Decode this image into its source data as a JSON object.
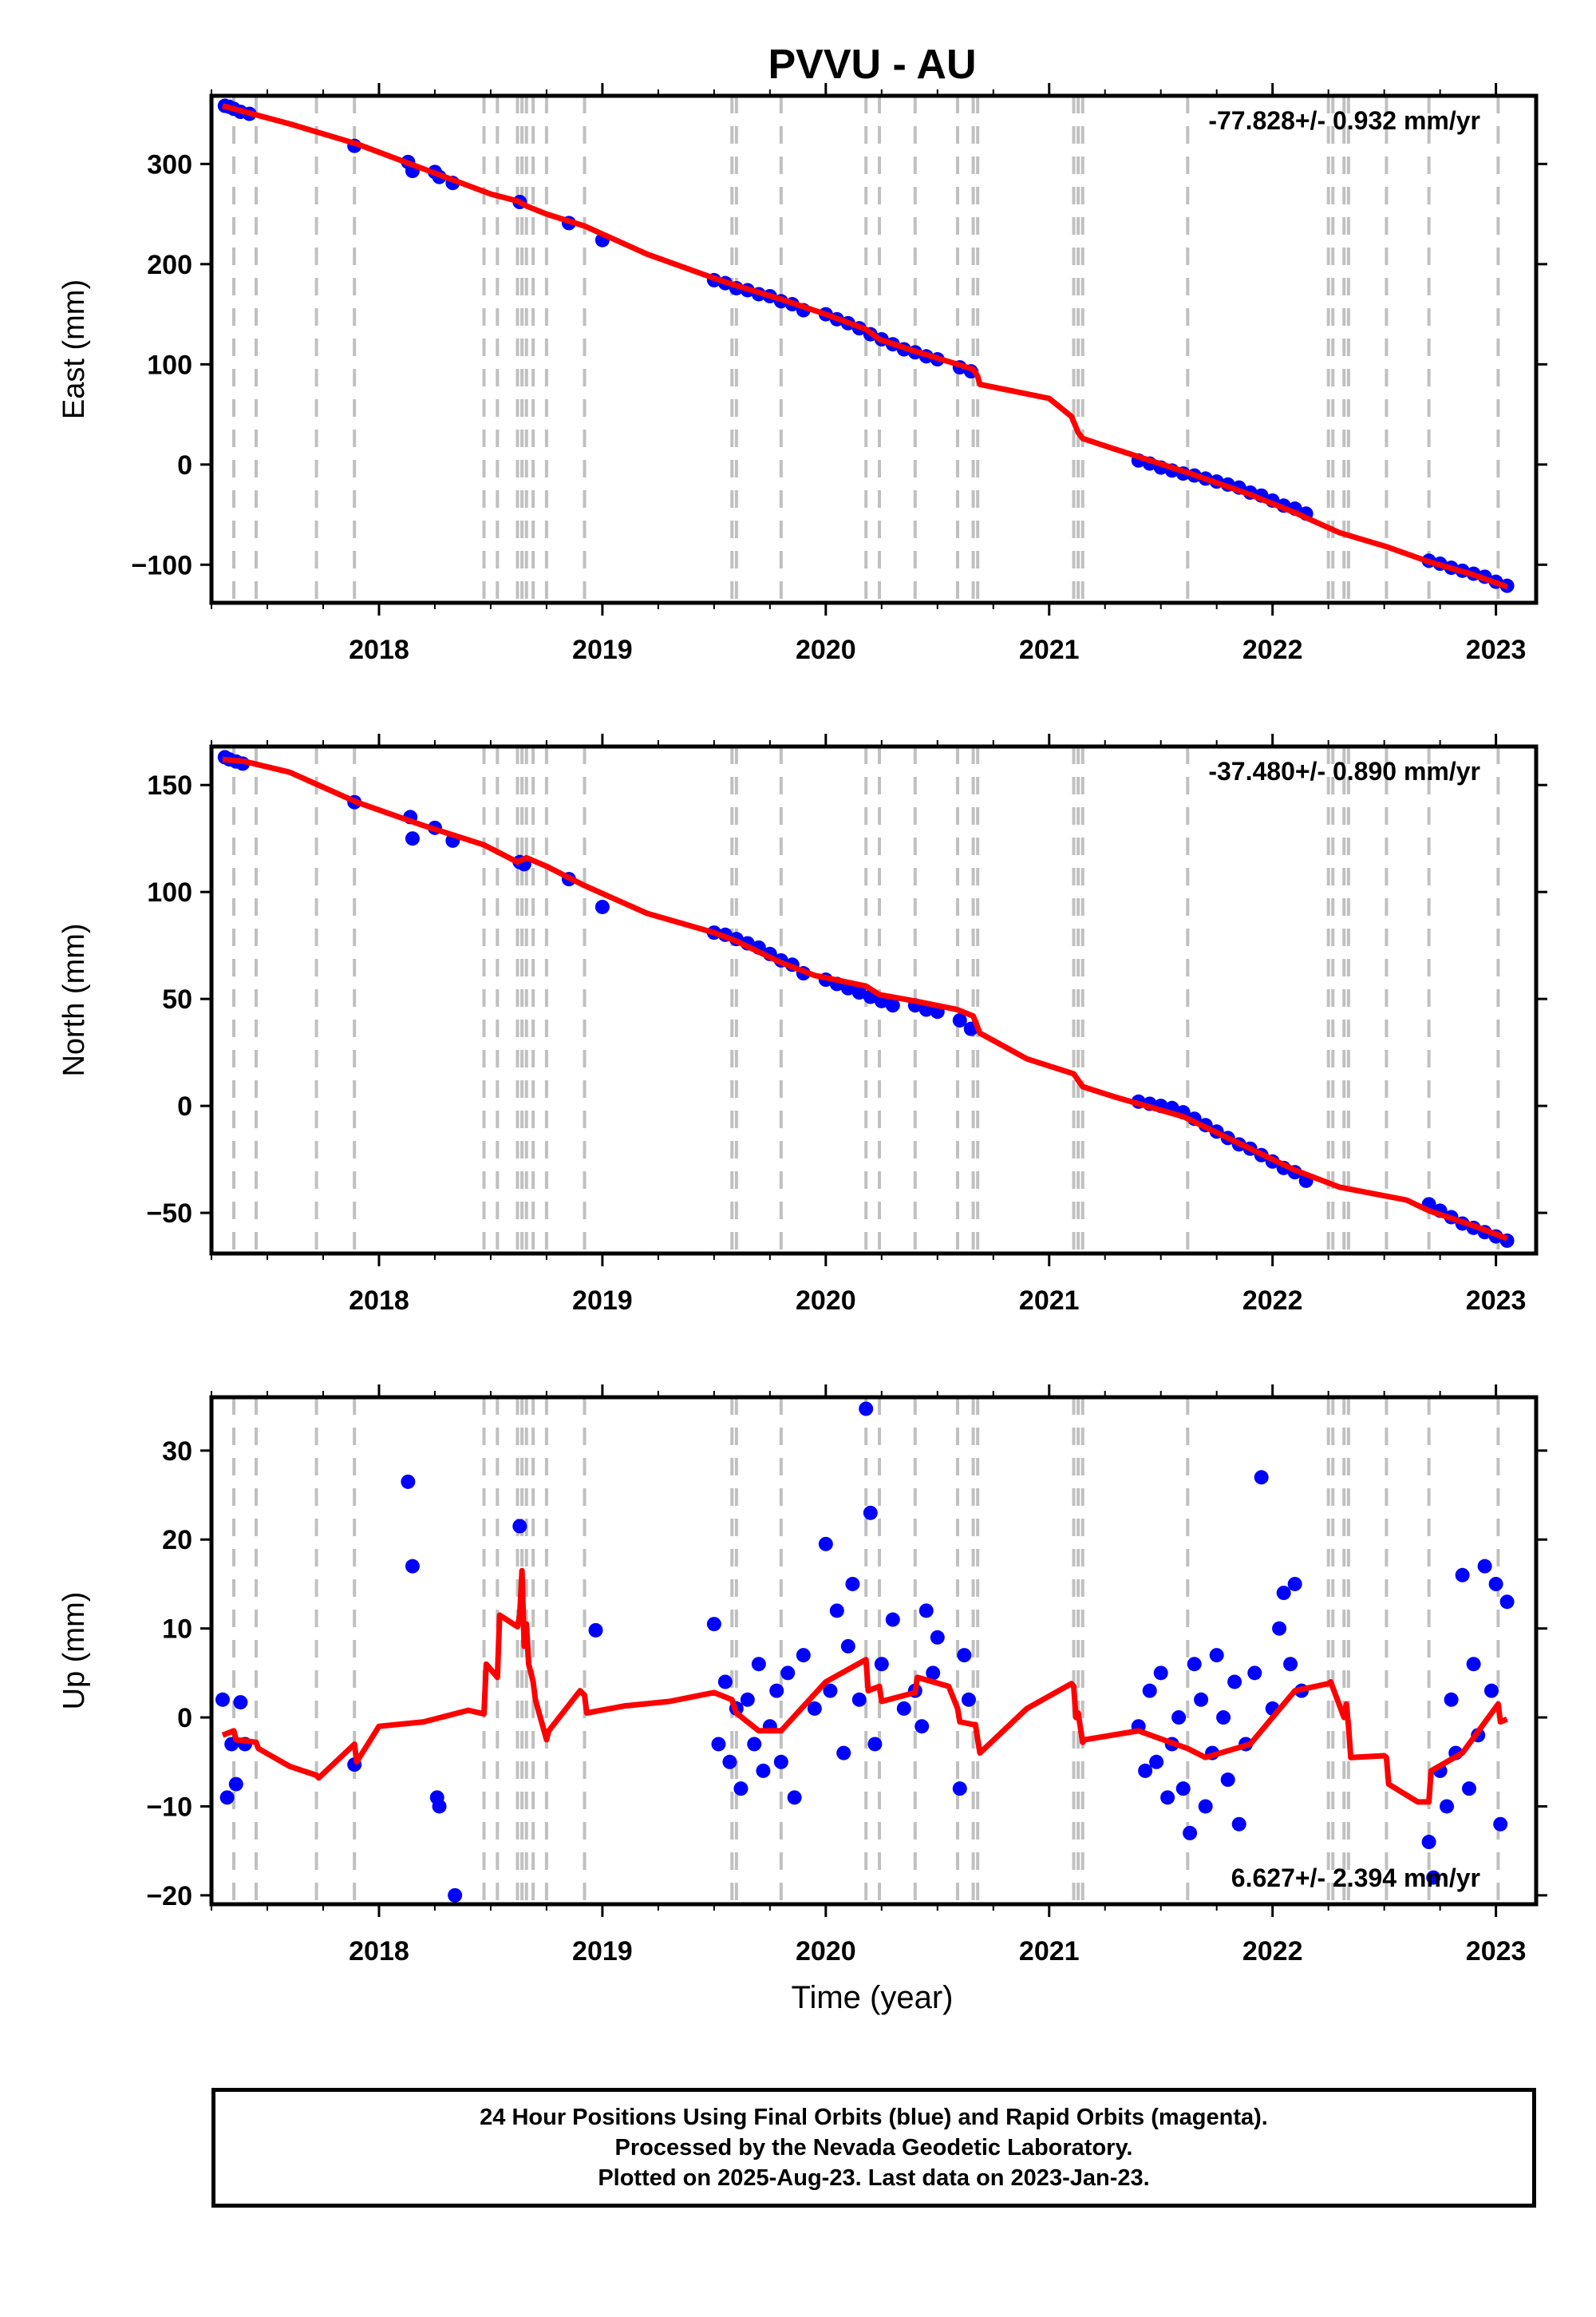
{
  "chart_data": {
    "type": "scatter",
    "title": "PVVU - AU",
    "xlabel": "Time (year)",
    "xlim": [
      2017.25,
      2023.18
    ],
    "x_ticks": [
      2018,
      2019,
      2020,
      2021,
      2022,
      2023
    ],
    "x_tick_labels": [
      "2018",
      "2019",
      "2020",
      "2021",
      "2022",
      "2023"
    ],
    "equipment_change_lines": [
      2017.35,
      2017.45,
      2017.72,
      2017.89,
      2018.47,
      2018.53,
      2018.62,
      2018.64,
      2018.66,
      2018.69,
      2018.75,
      2018.92,
      2019.58,
      2019.6,
      2019.8,
      2020.18,
      2020.24,
      2020.4,
      2020.59,
      2020.66,
      2020.68,
      2021.11,
      2021.13,
      2021.15,
      2021.62,
      2022.25,
      2022.27,
      2022.32,
      2022.34,
      2022.51,
      2022.7,
      2023.01
    ],
    "series_colors": {
      "final": "#0000ff",
      "model": "#ff0000",
      "events": "#c0c0c0"
    },
    "panels": [
      {
        "ylabel": "East (mm)",
        "ylim": [
          -138,
          368
        ],
        "y_ticks": [
          -100,
          0,
          100,
          200,
          300
        ],
        "y_tick_labels": [
          "−100",
          "0",
          "100",
          "200",
          "300"
        ],
        "rate_text": "-77.828+/- 0.932 mm/yr",
        "rate_position": "top-right",
        "model": {
          "x": [
            2017.3,
            2017.4,
            2017.6,
            2017.9,
            2018.2,
            2018.5,
            2018.62,
            2018.66,
            2018.75,
            2018.92,
            2019.2,
            2019.5,
            2019.58,
            2019.8,
            2020.0,
            2020.18,
            2020.24,
            2020.4,
            2020.59,
            2020.66,
            2020.68,
            2020.69,
            2021.0,
            2021.1,
            2021.13,
            2021.15,
            2021.3,
            2021.62,
            2021.9,
            2022.1,
            2022.3,
            2022.51,
            2022.7,
            2022.9,
            2023.05
          ],
          "y": [
            358,
            352,
            340,
            320,
            295,
            270,
            263,
            258,
            250,
            238,
            210,
            186,
            180,
            165,
            150,
            135,
            125,
            113,
            100,
            95,
            88,
            80,
            66,
            48,
            32,
            26,
            15,
            -8,
            -30,
            -48,
            -68,
            -82,
            -97,
            -110,
            -122
          ]
        },
        "points": {
          "x": [
            2017.31,
            2017.33,
            2017.35,
            2017.38,
            2017.42,
            2017.89,
            2018.13,
            2018.15,
            2018.25,
            2018.27,
            2018.33,
            2018.63,
            2018.85,
            2019.0,
            2019.5,
            2019.55,
            2019.6,
            2019.65,
            2019.7,
            2019.75,
            2019.8,
            2019.85,
            2019.9,
            2020.0,
            2020.05,
            2020.1,
            2020.15,
            2020.2,
            2020.25,
            2020.3,
            2020.35,
            2020.4,
            2020.45,
            2020.5,
            2020.6,
            2020.65,
            2021.4,
            2021.45,
            2021.5,
            2021.55,
            2021.6,
            2021.65,
            2021.7,
            2021.75,
            2021.8,
            2021.85,
            2021.9,
            2021.95,
            2022.0,
            2022.05,
            2022.1,
            2022.15,
            2022.7,
            2022.75,
            2022.8,
            2022.85,
            2022.9,
            2022.95,
            2023.0,
            2023.05
          ],
          "y": [
            358,
            357,
            355,
            352,
            350,
            318,
            302,
            293,
            292,
            287,
            281,
            262,
            241,
            224,
            184,
            181,
            176,
            174,
            170,
            168,
            163,
            160,
            154,
            150,
            145,
            141,
            136,
            130,
            125,
            120,
            115,
            112,
            108,
            105,
            97,
            93,
            4,
            1,
            -3,
            -6,
            -9,
            -11,
            -14,
            -17,
            -20,
            -23,
            -28,
            -31,
            -36,
            -41,
            -44,
            -49,
            -96,
            -99,
            -103,
            -106,
            -109,
            -112,
            -117,
            -121
          ]
        }
      },
      {
        "ylabel": "North (mm)",
        "ylim": [
          -69,
          168
        ],
        "y_ticks": [
          -50,
          0,
          50,
          100,
          150
        ],
        "y_tick_labels": [
          "−50",
          "0",
          "50",
          "100",
          "150"
        ],
        "rate_text": "-37.480+/- 0.890 mm/yr",
        "rate_position": "top-right",
        "model": {
          "x": [
            2017.3,
            2017.4,
            2017.6,
            2017.9,
            2018.2,
            2018.47,
            2018.62,
            2018.66,
            2018.75,
            2018.92,
            2019.2,
            2019.5,
            2019.6,
            2019.8,
            2019.95,
            2020.18,
            2020.24,
            2020.4,
            2020.59,
            2020.66,
            2020.69,
            2020.9,
            2021.11,
            2021.15,
            2021.3,
            2021.6,
            2021.9,
            2022.1,
            2022.3,
            2022.6,
            2022.7,
            2022.9,
            2023.05
          ],
          "y": [
            162,
            161,
            156,
            142,
            131,
            122,
            114,
            116,
            112,
            103,
            90,
            81,
            77,
            67,
            61,
            56,
            52,
            49,
            45,
            42,
            34,
            22,
            15,
            9,
            4,
            -5,
            -20,
            -30,
            -38,
            -44,
            -49,
            -56,
            -62
          ]
        },
        "points": {
          "x": [
            2017.31,
            2017.33,
            2017.36,
            2017.39,
            2017.89,
            2018.14,
            2018.15,
            2018.25,
            2018.33,
            2018.63,
            2018.65,
            2018.85,
            2019.0,
            2019.5,
            2019.55,
            2019.6,
            2019.65,
            2019.7,
            2019.75,
            2019.8,
            2019.85,
            2019.9,
            2020.0,
            2020.05,
            2020.1,
            2020.15,
            2020.2,
            2020.25,
            2020.3,
            2020.4,
            2020.45,
            2020.5,
            2020.6,
            2020.65,
            2021.4,
            2021.45,
            2021.5,
            2021.55,
            2021.6,
            2021.65,
            2021.7,
            2021.75,
            2021.8,
            2021.85,
            2021.9,
            2021.95,
            2022.0,
            2022.05,
            2022.1,
            2022.15,
            2022.7,
            2022.75,
            2022.8,
            2022.85,
            2022.9,
            2022.95,
            2023.0,
            2023.05
          ],
          "y": [
            163,
            162,
            161,
            160,
            142,
            135,
            125,
            130,
            124,
            114,
            113,
            106,
            93,
            81,
            80,
            78,
            76,
            74,
            71,
            68,
            66,
            62,
            59,
            57,
            55,
            53,
            51,
            49,
            47,
            47,
            45,
            44,
            40,
            36,
            2,
            1,
            0,
            -1,
            -3,
            -6,
            -9,
            -12,
            -15,
            -18,
            -20,
            -23,
            -26,
            -29,
            -31,
            -35,
            -46,
            -49,
            -52,
            -55,
            -57,
            -59,
            -61,
            -63
          ]
        }
      },
      {
        "ylabel": "Up (mm)",
        "ylim": [
          -21,
          36
        ],
        "y_ticks": [
          -20,
          -10,
          0,
          10,
          20,
          30
        ],
        "y_tick_labels": [
          "−20",
          "−10",
          "0",
          "10",
          "20",
          "30"
        ],
        "rate_text": "6.627+/- 2.394 mm/yr",
        "rate_position": "bottom-right",
        "model": {
          "x": [
            2017.3,
            2017.35,
            2017.36,
            2017.45,
            2017.46,
            2017.6,
            2017.72,
            2017.73,
            2017.89,
            2017.9,
            2018.0,
            2018.2,
            2018.4,
            2018.47,
            2018.48,
            2018.53,
            2018.54,
            2018.62,
            2018.63,
            2018.64,
            2018.65,
            2018.66,
            2018.67,
            2018.69,
            2018.7,
            2018.75,
            2018.76,
            2018.9,
            2018.92,
            2018.93,
            2019.1,
            2019.3,
            2019.5,
            2019.58,
            2019.6,
            2019.7,
            2019.8,
            2020.0,
            2020.18,
            2020.19,
            2020.24,
            2020.25,
            2020.4,
            2020.41,
            2020.55,
            2020.59,
            2020.6,
            2020.66,
            2020.67,
            2020.68,
            2020.69,
            2020.9,
            2021.1,
            2021.11,
            2021.12,
            2021.13,
            2021.15,
            2021.16,
            2021.4,
            2021.62,
            2021.7,
            2021.9,
            2022.1,
            2022.25,
            2022.26,
            2022.32,
            2022.33,
            2022.34,
            2022.35,
            2022.5,
            2022.51,
            2022.52,
            2022.65,
            2022.7,
            2022.71,
            2022.85,
            2023.01,
            2023.02,
            2023.05
          ],
          "y": [
            -2,
            -1.5,
            -2.5,
            -2.8,
            -3.5,
            -5.5,
            -6.5,
            -6.8,
            -3,
            -5,
            -1,
            -0.5,
            0.8,
            0.4,
            6,
            4.5,
            11.5,
            10.2,
            11.5,
            16.5,
            8,
            10.5,
            6,
            4,
            2,
            -2.5,
            -1.5,
            3,
            2.5,
            0.5,
            1.3,
            1.8,
            2.8,
            2,
            0.5,
            -1.5,
            -1.5,
            4,
            6.5,
            3,
            3.5,
            1.8,
            2.8,
            4.5,
            3.5,
            1,
            -0.5,
            -0.8,
            -0.8,
            -2.5,
            -4,
            1,
            3.8,
            3.5,
            0,
            0.5,
            -2.8,
            -2.5,
            -1.5,
            -3.5,
            -4.5,
            -3,
            3,
            3.8,
            4,
            0,
            1.5,
            -1,
            -4.5,
            -4.3,
            -4.5,
            -7.5,
            -9.5,
            -9.5,
            -6,
            -4,
            1.5,
            -0.5,
            -0.2
          ]
        },
        "points": {
          "x": [
            2017.3,
            2017.32,
            2017.34,
            2017.36,
            2017.38,
            2017.4,
            2017.89,
            2018.13,
            2018.15,
            2018.26,
            2018.27,
            2018.34,
            2018.63,
            2018.97,
            2019.5,
            2019.52,
            2019.55,
            2019.57,
            2019.6,
            2019.62,
            2019.65,
            2019.68,
            2019.7,
            2019.72,
            2019.75,
            2019.78,
            2019.8,
            2019.83,
            2019.86,
            2019.9,
            2019.95,
            2020.0,
            2020.02,
            2020.05,
            2020.08,
            2020.1,
            2020.12,
            2020.15,
            2020.18,
            2020.2,
            2020.22,
            2020.25,
            2020.3,
            2020.35,
            2020.4,
            2020.43,
            2020.45,
            2020.48,
            2020.5,
            2020.6,
            2020.62,
            2020.64,
            2021.4,
            2021.43,
            2021.45,
            2021.48,
            2021.5,
            2021.53,
            2021.55,
            2021.58,
            2021.6,
            2021.63,
            2021.65,
            2021.68,
            2021.7,
            2021.73,
            2021.75,
            2021.78,
            2021.8,
            2021.83,
            2021.85,
            2021.88,
            2021.92,
            2021.95,
            2022.0,
            2022.03,
            2022.05,
            2022.08,
            2022.1,
            2022.13,
            2022.7,
            2022.72,
            2022.75,
            2022.78,
            2022.8,
            2022.82,
            2022.85,
            2022.88,
            2022.9,
            2022.92,
            2022.95,
            2022.98,
            2023.0,
            2023.02,
            2023.05
          ],
          "y": [
            2,
            -9,
            -3,
            -7.5,
            1.7,
            -3,
            -5.3,
            26.5,
            17,
            -9,
            -10,
            -20,
            21.5,
            9.8,
            10.5,
            -3,
            4,
            -5,
            1,
            -8,
            2,
            -3,
            6,
            -6,
            -1,
            3,
            -5,
            5,
            -9,
            7,
            1,
            19.5,
            3,
            12,
            -4,
            8,
            15,
            2,
            34.7,
            23,
            -3,
            6,
            11,
            1,
            3,
            -1,
            12,
            5,
            9,
            -8,
            7,
            2,
            -1,
            -6,
            3,
            -5,
            5,
            -9,
            -3,
            0,
            -8,
            -13,
            6,
            2,
            -10,
            -4,
            7,
            0,
            -7,
            4,
            -12,
            -3,
            5,
            27,
            1,
            10,
            14,
            6,
            15,
            3,
            -14,
            -18,
            -6,
            -10,
            2,
            -4,
            16,
            -8,
            6,
            -2,
            17,
            3,
            15,
            -12,
            13
          ]
        }
      }
    ]
  },
  "footer": {
    "line1": "24 Hour Positions Using Final Orbits (blue) and Rapid Orbits (magenta).",
    "line2": "Processed by the Nevada Geodetic Laboratory.",
    "line3": "Plotted on 2025-Aug-23. Last data on 2023-Jan-23."
  }
}
